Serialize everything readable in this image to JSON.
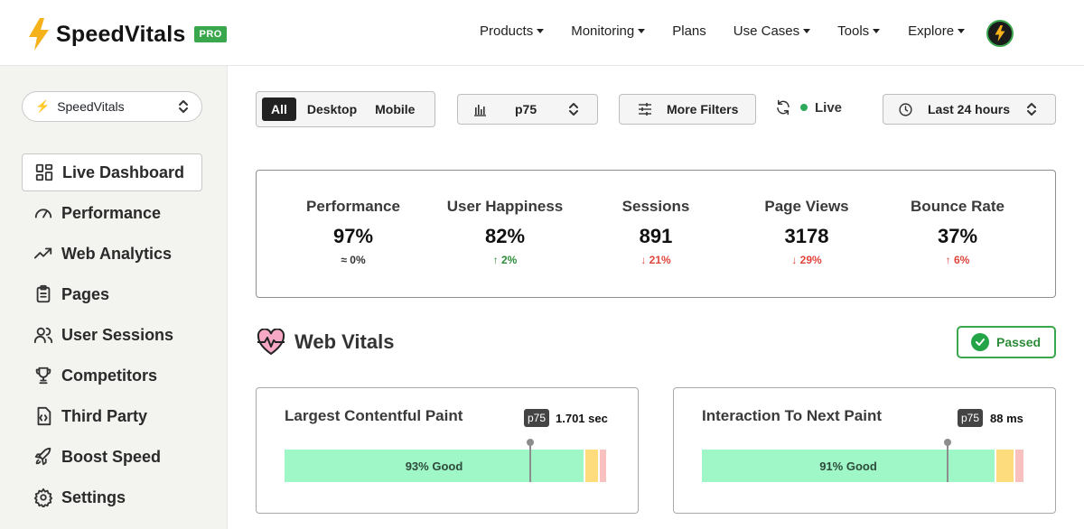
{
  "brand": {
    "name": "SpeedVitals",
    "badge": "PRO"
  },
  "nav": {
    "items": [
      {
        "label": "Products",
        "has_caret": true
      },
      {
        "label": "Monitoring",
        "has_caret": true
      },
      {
        "label": "Plans",
        "has_caret": false
      },
      {
        "label": "Use Cases",
        "has_caret": true
      },
      {
        "label": "Tools",
        "has_caret": true
      },
      {
        "label": "Explore",
        "has_caret": true
      }
    ]
  },
  "sidebar": {
    "site_selector": "SpeedVitals",
    "items": [
      {
        "label": "Live Dashboard",
        "icon": "grid-icon",
        "active": true
      },
      {
        "label": "Performance",
        "icon": "gauge-icon"
      },
      {
        "label": "Web Analytics",
        "icon": "trend-icon"
      },
      {
        "label": "Pages",
        "icon": "clipboard-icon"
      },
      {
        "label": "User Sessions",
        "icon": "users-icon"
      },
      {
        "label": "Competitors",
        "icon": "trophy-icon"
      },
      {
        "label": "Third Party",
        "icon": "code-file-icon"
      },
      {
        "label": "Boost Speed",
        "icon": "rocket-icon"
      },
      {
        "label": "Settings",
        "icon": "gear-icon"
      }
    ]
  },
  "filters": {
    "device_tabs": [
      "All",
      "Desktop",
      "Mobile"
    ],
    "device_active": "All",
    "percentile": "p75",
    "more_filters": "More Filters",
    "live_label": "Live",
    "time_range": "Last 24 hours"
  },
  "stats": [
    {
      "label": "Performance",
      "value": "97%",
      "change": "≈ 0%",
      "trend": "flat"
    },
    {
      "label": "User Happiness",
      "value": "82%",
      "change": "↑ 2%",
      "trend": "up"
    },
    {
      "label": "Sessions",
      "value": "891",
      "change": "↓ 21%",
      "trend": "down"
    },
    {
      "label": "Page Views",
      "value": "3178",
      "change": "↓ 29%",
      "trend": "down"
    },
    {
      "label": "Bounce Rate",
      "value": "37%",
      "change": "↑ 6%",
      "trend": "bad-up"
    }
  ],
  "web_vitals": {
    "title": "Web Vitals",
    "status": "Passed",
    "metrics": [
      {
        "name": "Largest Contentful Paint",
        "percentile": "p75",
        "value": "1.701 sec",
        "good_label": "93% Good",
        "good": 0.93,
        "needs_improvement": 0.045,
        "poor": 0.025,
        "marker": 0.76
      },
      {
        "name": "Interaction To Next Paint",
        "percentile": "p75",
        "value": "88 ms",
        "good_label": "91% Good",
        "good": 0.91,
        "needs_improvement": 0.06,
        "poor": 0.03,
        "marker": 0.76
      }
    ]
  },
  "colors": {
    "brand_green": "#3aa74d",
    "good": "#9ff7c8",
    "needs_improvement": "#fcdc7d",
    "poor": "#f9c0c0"
  }
}
